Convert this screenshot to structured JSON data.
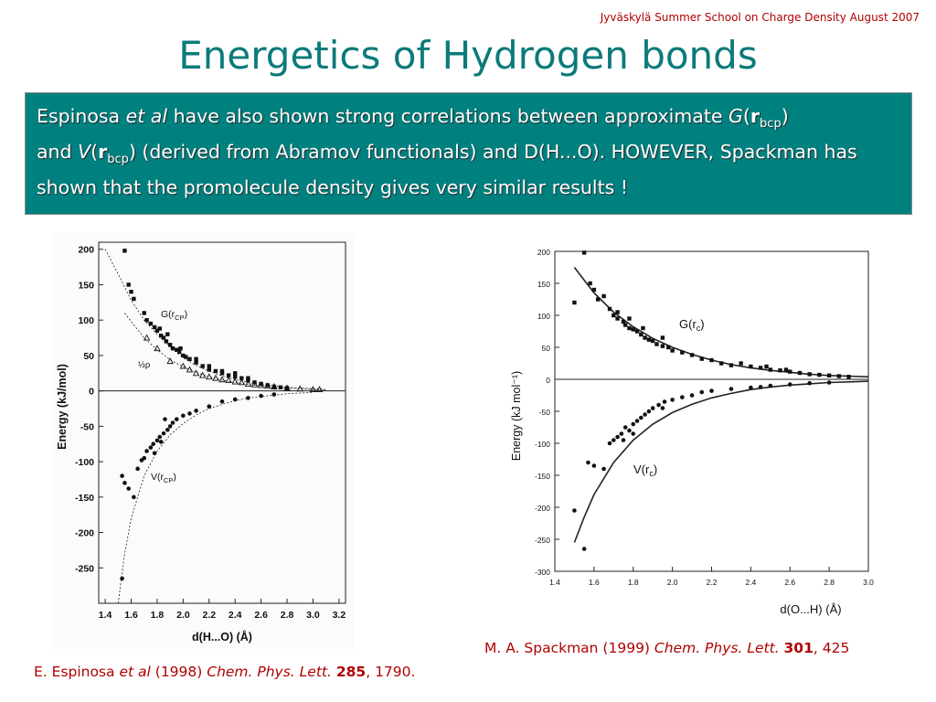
{
  "header": {
    "note": "Jyväskylä Summer School  on Charge Density August 2007"
  },
  "slide": {
    "title": "Energetics of Hydrogen bonds"
  },
  "textbox": {
    "p1": "Espinosa ",
    "etal": "et al",
    "p2": "  have also shown strong correlations between approximate ",
    "G": "G",
    "r": "r",
    "bcp": "bcp",
    "p3": "and ",
    "V": "V",
    "p4": " (derived from Abramov functionals) and D(H...O). HOWEVER, Spackman has shown that the promolecule density gives very similar results !"
  },
  "citations": {
    "right": {
      "author": "M. A. Spackman  (1999) ",
      "journal": "Chem. Phys. Lett.",
      "volume": "301",
      "page": ", 425"
    },
    "left": {
      "author": "E. Espinosa ",
      "etal": "et al",
      "year": " (1998) ",
      "journal": "Chem. Phys. Lett.",
      "volume": "285",
      "page": ", 1790."
    }
  },
  "colors": {
    "title": "#0b7a7a",
    "box": "#00807f",
    "citation": "#b00000",
    "header": "#b00000"
  },
  "chart_data": [
    {
      "type": "scatter",
      "title": "",
      "xlabel": "d(H...O) (Å)",
      "ylabel": "Energy (kJ/mol)",
      "xlim": [
        1.35,
        3.25
      ],
      "ylim": [
        -300,
        210
      ],
      "x_ticks": [
        "1.4",
        "1.6",
        "1.8",
        "2.0",
        "2.2",
        "2.4",
        "2.6",
        "2.8",
        "3.0",
        "3.2"
      ],
      "y_ticks": [
        "200",
        "150",
        "100",
        "50",
        "0",
        "-50",
        "-100",
        "-150",
        "-200",
        "-250"
      ],
      "annotations": {
        "G_label": "G(r",
        "G_sub": "CP",
        "V_label": "V(r",
        "V_sub": "CP",
        "half": "½ρ"
      },
      "series": [
        {
          "name": "G(rCP)",
          "marker": "square",
          "points": [
            [
              1.55,
              198
            ],
            [
              1.58,
              150
            ],
            [
              1.6,
              140
            ],
            [
              1.62,
              130
            ],
            [
              1.7,
              110
            ],
            [
              1.72,
              100
            ],
            [
              1.75,
              95
            ],
            [
              1.78,
              90
            ],
            [
              1.8,
              85
            ],
            [
              1.82,
              88
            ],
            [
              1.83,
              78
            ],
            [
              1.85,
              75
            ],
            [
              1.87,
              70
            ],
            [
              1.88,
              80
            ],
            [
              1.9,
              65
            ],
            [
              1.92,
              60
            ],
            [
              1.95,
              58
            ],
            [
              1.97,
              55
            ],
            [
              2.0,
              50
            ],
            [
              2.02,
              48
            ],
            [
              2.05,
              45
            ],
            [
              2.1,
              40
            ],
            [
              2.15,
              35
            ],
            [
              2.2,
              30
            ],
            [
              2.25,
              28
            ],
            [
              2.3,
              25
            ],
            [
              2.35,
              22
            ],
            [
              2.4,
              20
            ],
            [
              2.45,
              18
            ],
            [
              2.5,
              15
            ],
            [
              2.55,
              12
            ],
            [
              2.6,
              10
            ],
            [
              2.65,
              8
            ],
            [
              2.7,
              6
            ],
            [
              2.75,
              5
            ],
            [
              2.8,
              4
            ],
            [
              2.4,
              25
            ],
            [
              2.3,
              28
            ],
            [
              2.2,
              35
            ],
            [
              2.1,
              45
            ],
            [
              1.98,
              60
            ],
            [
              2.5,
              18
            ]
          ]
        },
        {
          "name": "½ρ",
          "marker": "triangle",
          "points": [
            [
              1.72,
              75
            ],
            [
              1.8,
              60
            ],
            [
              1.9,
              42
            ],
            [
              2.0,
              35
            ],
            [
              2.05,
              30
            ],
            [
              2.1,
              25
            ],
            [
              2.15,
              22
            ],
            [
              2.2,
              20
            ],
            [
              2.25,
              18
            ],
            [
              2.3,
              16
            ],
            [
              2.35,
              15
            ],
            [
              2.4,
              13
            ],
            [
              2.45,
              12
            ],
            [
              2.5,
              10
            ],
            [
              2.55,
              9
            ],
            [
              2.6,
              8
            ],
            [
              2.65,
              7
            ],
            [
              2.7,
              6
            ],
            [
              2.8,
              4
            ],
            [
              2.9,
              3
            ],
            [
              3.0,
              2
            ],
            [
              3.05,
              2
            ]
          ]
        },
        {
          "name": "V(rCP)",
          "marker": "dot",
          "points": [
            [
              1.53,
              -120
            ],
            [
              1.55,
              -130
            ],
            [
              1.58,
              -138
            ],
            [
              1.62,
              -150
            ],
            [
              1.65,
              -110
            ],
            [
              1.68,
              -98
            ],
            [
              1.7,
              -95
            ],
            [
              1.72,
              -85
            ],
            [
              1.75,
              -80
            ],
            [
              1.77,
              -75
            ],
            [
              1.78,
              -88
            ],
            [
              1.8,
              -70
            ],
            [
              1.82,
              -65
            ],
            [
              1.83,
              -72
            ],
            [
              1.85,
              -60
            ],
            [
              1.88,
              -55
            ],
            [
              1.9,
              -50
            ],
            [
              1.92,
              -45
            ],
            [
              1.95,
              -40
            ],
            [
              2.0,
              -35
            ],
            [
              2.05,
              -32
            ],
            [
              2.1,
              -28
            ],
            [
              2.2,
              -22
            ],
            [
              2.3,
              -15
            ],
            [
              2.4,
              -12
            ],
            [
              2.5,
              -10
            ],
            [
              2.6,
              -7
            ],
            [
              2.7,
              -5
            ],
            [
              1.53,
              -265
            ],
            [
              1.86,
              -40
            ]
          ]
        }
      ],
      "curves": [
        {
          "name": "G fit",
          "x": [
            1.4,
            1.5,
            1.6,
            1.7,
            1.8,
            1.9,
            2.0,
            2.1,
            2.2,
            2.3,
            2.4,
            2.5,
            2.6,
            2.7,
            2.8,
            2.9,
            3.0,
            3.1
          ],
          "y": [
            200,
            165,
            128,
            100,
            80,
            62,
            47,
            36,
            28,
            21,
            16,
            12,
            9,
            7,
            5,
            4,
            3,
            2
          ]
        },
        {
          "name": "half-rho fit",
          "x": [
            1.55,
            1.6,
            1.7,
            1.8,
            1.9,
            2.0,
            2.1,
            2.2,
            2.3,
            2.4,
            2.5,
            2.6,
            2.7,
            2.8,
            2.9,
            3.0,
            3.1
          ],
          "y": [
            110,
            98,
            75,
            58,
            44,
            34,
            26,
            20,
            15,
            12,
            9,
            7,
            5,
            4,
            3,
            2,
            1.5
          ]
        },
        {
          "name": "V fit",
          "x": [
            1.5,
            1.55,
            1.6,
            1.7,
            1.8,
            1.9,
            2.0,
            2.1,
            2.2,
            2.3,
            2.4,
            2.5,
            2.6,
            2.7,
            2.8,
            2.9,
            3.0
          ],
          "y": [
            -300,
            -230,
            -180,
            -120,
            -85,
            -62,
            -46,
            -34,
            -25,
            -19,
            -14,
            -10,
            -8,
            -6,
            -4,
            -3,
            -2
          ]
        }
      ]
    },
    {
      "type": "scatter",
      "title": "",
      "xlabel": "d(O...H)  (Å)",
      "ylabel": "Energy   (kJ mol⁻¹)",
      "xlim": [
        1.4,
        3.0
      ],
      "ylim": [
        -300,
        200
      ],
      "x_ticks": [
        "1.4",
        "1.6",
        "1.8",
        "2.0",
        "2.2",
        "2.4",
        "2.6",
        "2.8",
        "3.0"
      ],
      "y_ticks": [
        "200",
        "150",
        "100",
        "50",
        "0",
        "-50",
        "-100",
        "-150",
        "-200",
        "-250",
        "-300"
      ],
      "annotations": {
        "G_label": "G(r",
        "G_sub": "c",
        "V_label": "V(r",
        "V_sub": "c"
      },
      "series": [
        {
          "name": "G(rc)",
          "marker": "square",
          "points": [
            [
              1.5,
              120
            ],
            [
              1.55,
              198
            ],
            [
              1.58,
              150
            ],
            [
              1.6,
              140
            ],
            [
              1.62,
              125
            ],
            [
              1.65,
              130
            ],
            [
              1.68,
              110
            ],
            [
              1.7,
              100
            ],
            [
              1.72,
              95
            ],
            [
              1.75,
              90
            ],
            [
              1.76,
              85
            ],
            [
              1.78,
              80
            ],
            [
              1.8,
              78
            ],
            [
              1.82,
              75
            ],
            [
              1.84,
              70
            ],
            [
              1.86,
              65
            ],
            [
              1.88,
              62
            ],
            [
              1.9,
              60
            ],
            [
              1.92,
              55
            ],
            [
              1.95,
              52
            ],
            [
              1.98,
              50
            ],
            [
              2.0,
              45
            ],
            [
              2.05,
              42
            ],
            [
              2.1,
              38
            ],
            [
              2.15,
              32
            ],
            [
              2.2,
              30
            ],
            [
              2.25,
              25
            ],
            [
              2.3,
              22
            ],
            [
              2.4,
              20
            ],
            [
              2.45,
              18
            ],
            [
              2.5,
              15
            ],
            [
              2.55,
              14
            ],
            [
              2.6,
              12
            ],
            [
              2.65,
              10
            ],
            [
              2.7,
              8
            ],
            [
              2.75,
              7
            ],
            [
              2.8,
              6
            ],
            [
              2.85,
              5
            ],
            [
              2.9,
              4
            ],
            [
              1.72,
              105
            ],
            [
              1.78,
              95
            ],
            [
              1.85,
              80
            ],
            [
              1.95,
              65
            ],
            [
              2.35,
              25
            ],
            [
              2.48,
              20
            ],
            [
              2.58,
              15
            ]
          ]
        },
        {
          "name": "V(rc)",
          "marker": "dot",
          "points": [
            [
              1.5,
              -205
            ],
            [
              1.55,
              -265
            ],
            [
              1.57,
              -130
            ],
            [
              1.6,
              -135
            ],
            [
              1.65,
              -140
            ],
            [
              1.68,
              -100
            ],
            [
              1.7,
              -95
            ],
            [
              1.72,
              -90
            ],
            [
              1.74,
              -85
            ],
            [
              1.76,
              -75
            ],
            [
              1.78,
              -80
            ],
            [
              1.8,
              -70
            ],
            [
              1.82,
              -65
            ],
            [
              1.84,
              -60
            ],
            [
              1.86,
              -55
            ],
            [
              1.88,
              -50
            ],
            [
              1.9,
              -45
            ],
            [
              1.93,
              -40
            ],
            [
              1.96,
              -35
            ],
            [
              2.0,
              -32
            ],
            [
              2.05,
              -28
            ],
            [
              2.1,
              -25
            ],
            [
              2.15,
              -20
            ],
            [
              2.2,
              -18
            ],
            [
              2.3,
              -15
            ],
            [
              2.4,
              -13
            ],
            [
              2.5,
              -10
            ],
            [
              2.6,
              -8
            ],
            [
              2.7,
              -6
            ],
            [
              2.8,
              -5
            ],
            [
              1.8,
              -85
            ],
            [
              1.75,
              -95
            ],
            [
              1.95,
              -45
            ],
            [
              2.45,
              -12
            ]
          ]
        }
      ],
      "curves": [
        {
          "name": "G fit",
          "x": [
            1.5,
            1.6,
            1.7,
            1.8,
            1.9,
            2.0,
            2.1,
            2.2,
            2.3,
            2.4,
            2.5,
            2.6,
            2.7,
            2.8,
            2.9,
            3.0
          ],
          "y": [
            175,
            135,
            105,
            82,
            64,
            50,
            39,
            30,
            23,
            18,
            14,
            11,
            8,
            6,
            5,
            4
          ]
        },
        {
          "name": "V fit",
          "x": [
            1.5,
            1.55,
            1.6,
            1.7,
            1.8,
            1.9,
            2.0,
            2.1,
            2.2,
            2.3,
            2.4,
            2.5,
            2.6,
            2.7,
            2.8,
            2.9,
            3.0
          ],
          "y": [
            -255,
            -215,
            -180,
            -130,
            -95,
            -70,
            -52,
            -39,
            -29,
            -22,
            -16,
            -12,
            -9,
            -7,
            -5,
            -4,
            -3
          ]
        }
      ]
    }
  ]
}
